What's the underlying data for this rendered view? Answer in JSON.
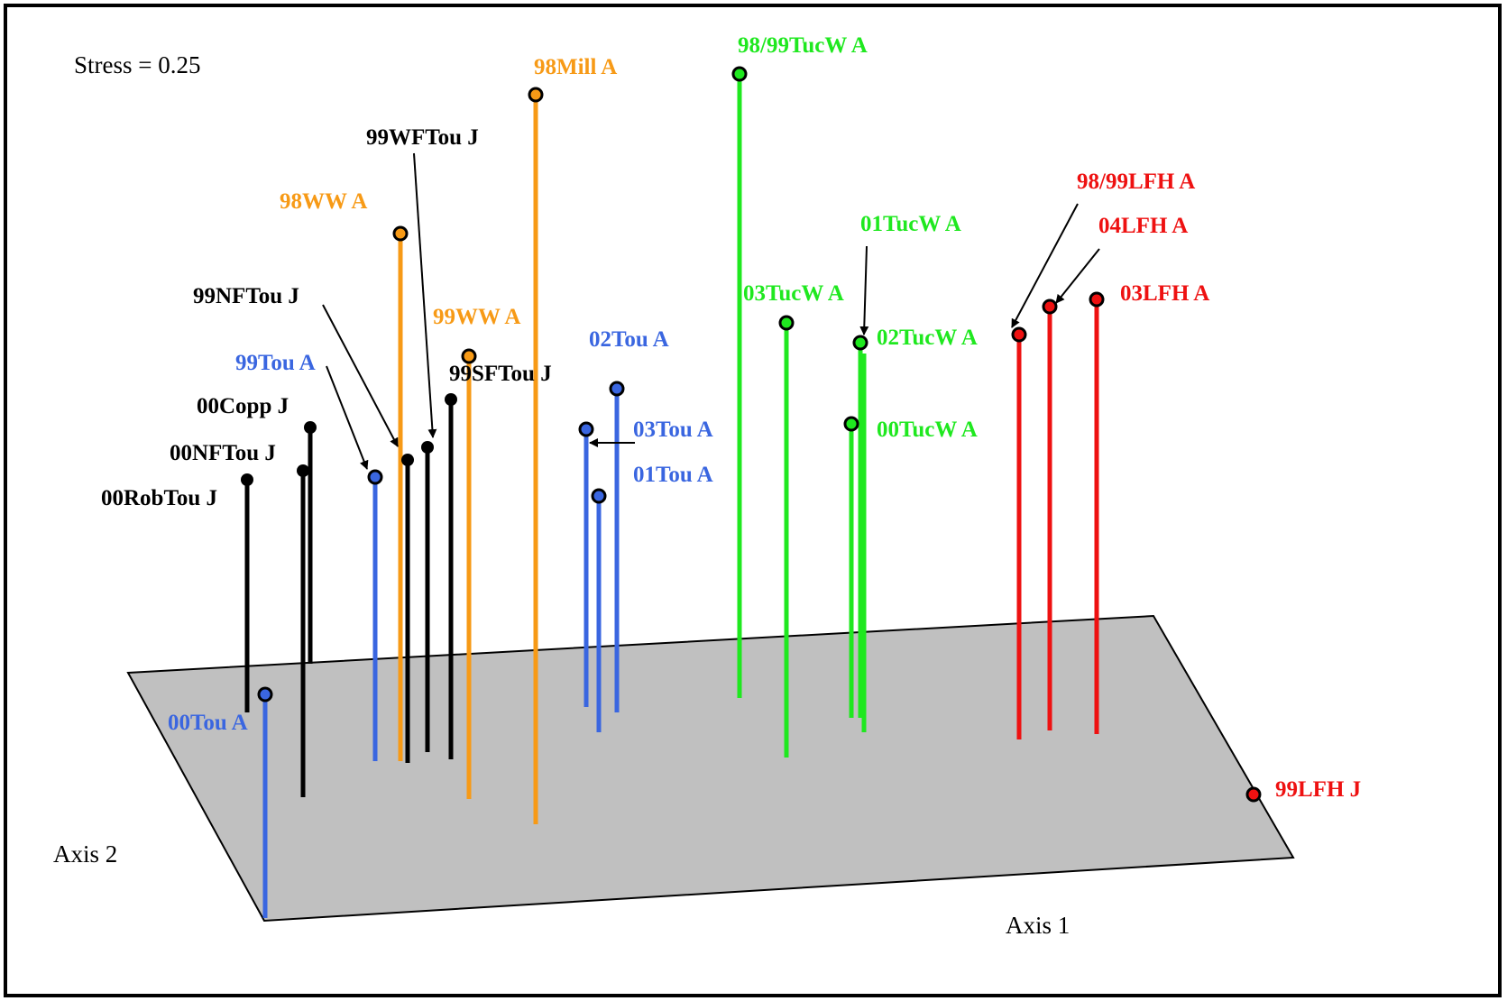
{
  "chart_data": {
    "type": "scatter",
    "subtype": "3d-stem-ordination",
    "stress_text": "Stress = 0.25",
    "xlabel": "Axis 1",
    "ylabel": "Axis 2",
    "grid": false,
    "colors": {
      "black": "#000000",
      "blue": "#3a66e0",
      "orange": "#f79a16",
      "green": "#1fe81f",
      "red": "#ee1111",
      "plane": "#c0c0c0"
    },
    "points": [
      {
        "label": "00RobTou J",
        "color": "black"
      },
      {
        "label": "00NFTou J",
        "color": "black"
      },
      {
        "label": "00Copp J",
        "color": "black"
      },
      {
        "label": "99NFTou J",
        "color": "black"
      },
      {
        "label": "99WFTou J",
        "color": "black"
      },
      {
        "label": "99SFTou J",
        "color": "black"
      },
      {
        "label": "99Tou A",
        "color": "blue"
      },
      {
        "label": "00Tou A",
        "color": "blue"
      },
      {
        "label": "02Tou A",
        "color": "blue"
      },
      {
        "label": "03Tou A",
        "color": "blue"
      },
      {
        "label": "01Tou A",
        "color": "blue"
      },
      {
        "label": "98WW A",
        "color": "orange"
      },
      {
        "label": "99WW A",
        "color": "orange"
      },
      {
        "label": "98Mill A",
        "color": "orange"
      },
      {
        "label": "98/99TucW A",
        "color": "green"
      },
      {
        "label": "03TucW A",
        "color": "green"
      },
      {
        "label": "01TucW A",
        "color": "green"
      },
      {
        "label": "02TucW A",
        "color": "green"
      },
      {
        "label": "00TucW A",
        "color": "green"
      },
      {
        "label": "98/99LFH A",
        "color": "red"
      },
      {
        "label": "04LFH A",
        "color": "red"
      },
      {
        "label": "03LFH A",
        "color": "red"
      },
      {
        "label": "99LFH J",
        "color": "red"
      }
    ]
  }
}
